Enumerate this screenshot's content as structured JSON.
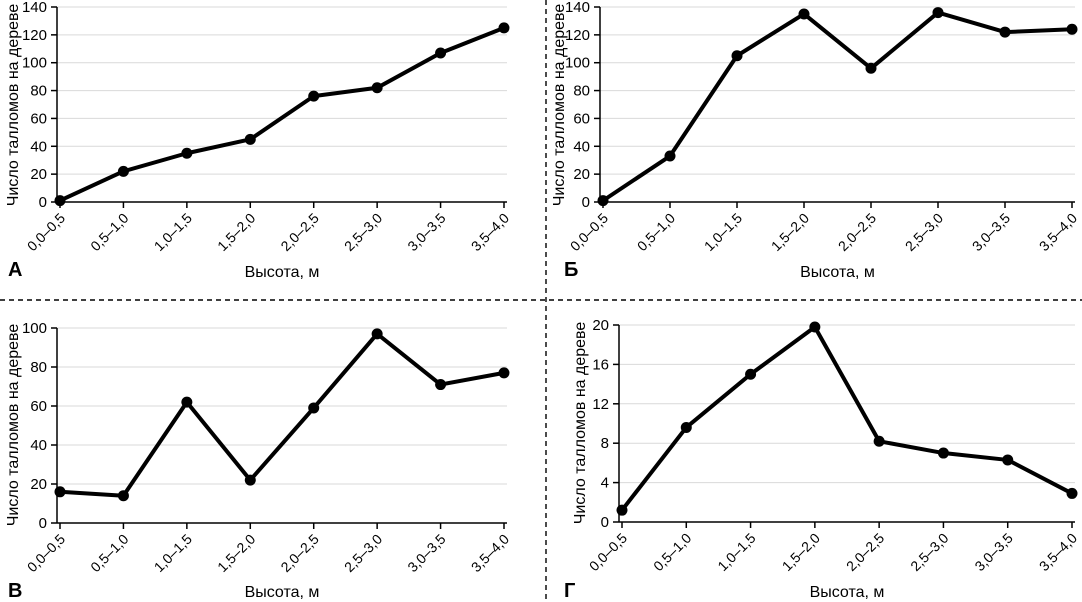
{
  "figure": {
    "type": "2x2-panel-figure",
    "divider_style": "dashed",
    "background": "#ffffff"
  },
  "colors": {
    "line": "#000000",
    "axis": "#000000",
    "grid": "#d9d9d9",
    "text": "#000000"
  },
  "chart_data": [
    {
      "type": "line",
      "panel_label": "А",
      "ylabel": "Число талломов на дереве",
      "xlabel": "Высота, м",
      "categories": [
        "0,0–0,5",
        "0,5–1,0",
        "1,0–1,5",
        "1,5–2,0",
        "2,0–2,5",
        "2,5–3,0",
        "3,0–3,5",
        "3,5–4,0"
      ],
      "values": [
        1,
        22,
        35,
        45,
        76,
        82,
        107,
        125
      ],
      "ylim": [
        0,
        140
      ],
      "ytick_step": 20,
      "grid": true,
      "legend": "none",
      "marker": "circle",
      "line_color": "#000000"
    },
    {
      "type": "line",
      "panel_label": "Б",
      "ylabel": "Число талломов на дереве",
      "xlabel": "Высота, м",
      "categories": [
        "0,0–0,5",
        "0,5–1,0",
        "1,0–1,5",
        "1,5–2,0",
        "2,0–2,5",
        "2,5–3,0",
        "3,0–3,5",
        "3,5–4,0"
      ],
      "values": [
        1,
        33,
        105,
        135,
        96,
        136,
        122,
        124
      ],
      "ylim": [
        0,
        140
      ],
      "ytick_step": 20,
      "grid": true,
      "legend": "none",
      "marker": "circle",
      "line_color": "#000000"
    },
    {
      "type": "line",
      "panel_label": "В",
      "ylabel": "Число талломов на дереве",
      "xlabel": "Высота, м",
      "categories": [
        "0,0–0,5",
        "0,5–1,0",
        "1,0–1,5",
        "1,5–2,0",
        "2,0–2,5",
        "2,5–3,0",
        "3,0–3,5",
        "3,5–4,0"
      ],
      "values": [
        16,
        14,
        62,
        22,
        59,
        97,
        71,
        77
      ],
      "ylim": [
        0,
        100
      ],
      "ytick_step": 20,
      "grid": true,
      "legend": "none",
      "marker": "circle",
      "line_color": "#000000"
    },
    {
      "type": "line",
      "panel_label": "Г",
      "ylabel": "Число талломов на дереве",
      "xlabel": "Высота, м",
      "categories": [
        "0,0–0,5",
        "0,5–1,0",
        "1,0–1,5",
        "1,5–2,0",
        "2,0–2,5",
        "2,5–3,0",
        "3,0–3,5",
        "3,5–4,0"
      ],
      "values": [
        1.2,
        9.6,
        15,
        19.8,
        8.2,
        7,
        6.3,
        2.9
      ],
      "ylim": [
        0,
        20
      ],
      "ytick_step": 4,
      "grid": true,
      "legend": "none",
      "marker": "circle",
      "line_color": "#000000"
    }
  ]
}
